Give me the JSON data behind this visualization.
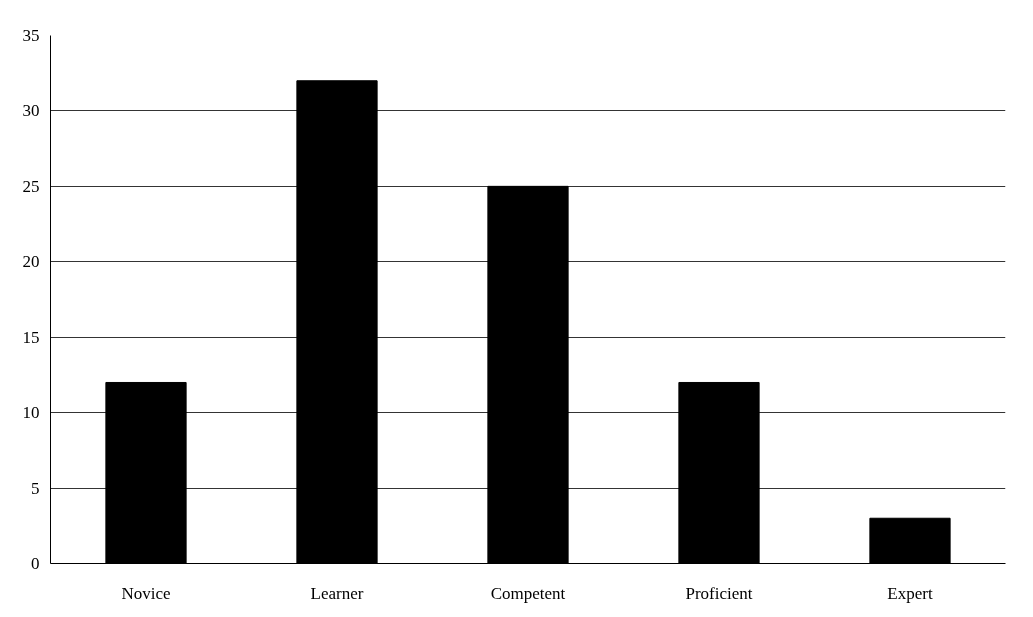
{
  "chart_data": {
    "type": "bar",
    "categories": [
      "Novice",
      "Learner",
      "Competent",
      "Proficient",
      "Expert"
    ],
    "values": [
      12,
      32,
      25,
      12,
      3
    ],
    "color": "#000000",
    "ylim": [
      0,
      35
    ],
    "yticks": [
      0,
      5,
      10,
      15,
      20,
      25,
      30,
      35
    ],
    "grid": "y"
  }
}
